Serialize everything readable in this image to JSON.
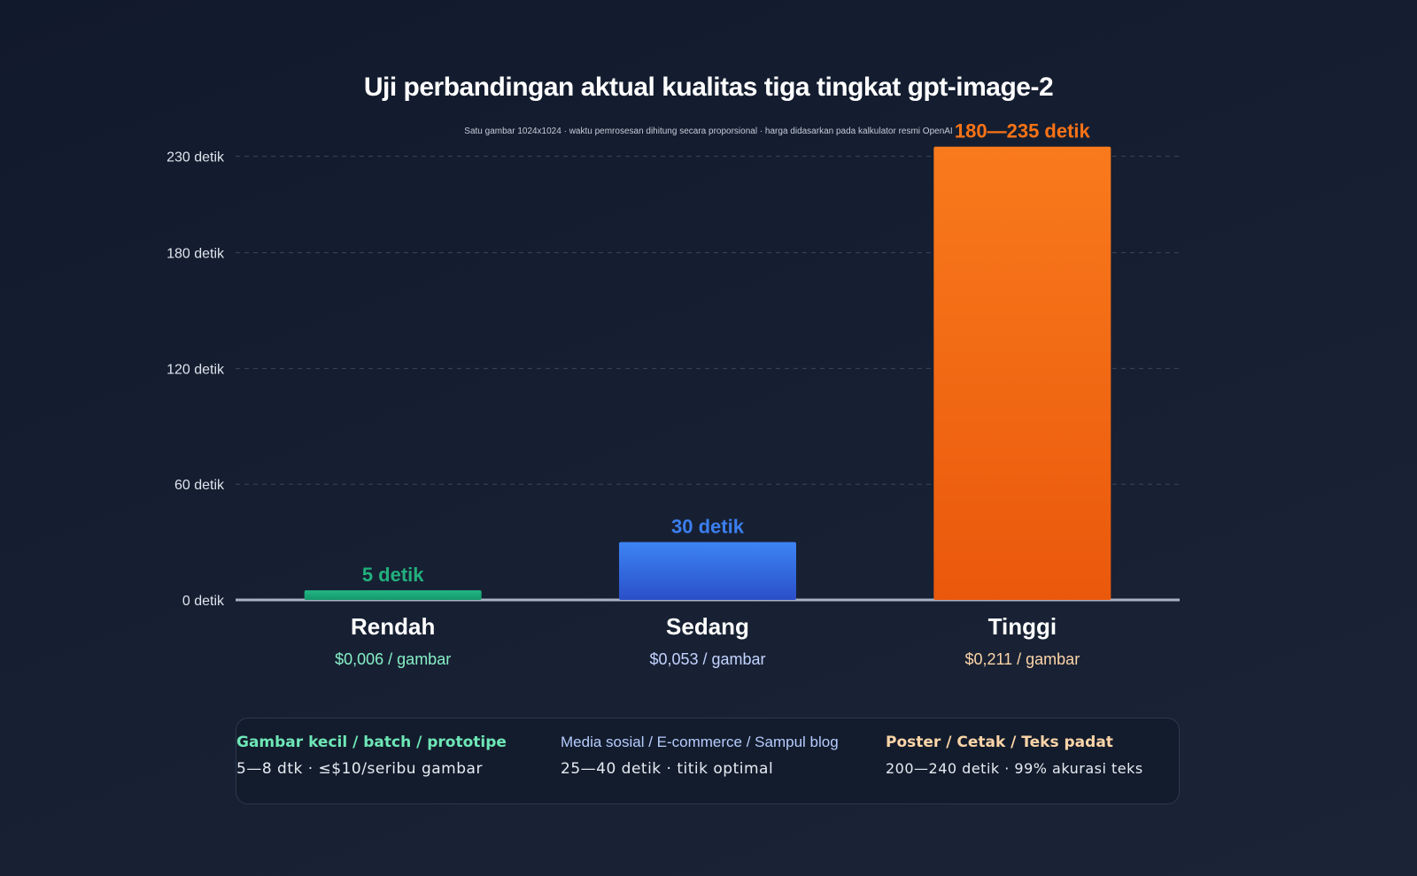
{
  "chart_data": {
    "type": "bar",
    "title": "Uji perbandingan aktual kualitas tiga tingkat gpt-image-2",
    "subtitle": "Satu gambar 1024x1024 · waktu pemrosesan dihitung secara proporsional · harga didasarkan pada kalkulator resmi OpenAI",
    "categories": [
      "Rendah",
      "Sedang",
      "Tinggi"
    ],
    "values": [
      5,
      30,
      235
    ],
    "value_labels": [
      "5 detik",
      "30 detik",
      "180—235 detik"
    ],
    "prices": [
      "$0,006 / gambar",
      "$0,053 / gambar",
      "$0,211 / gambar"
    ],
    "colors": [
      "#22b07d",
      "#3b7ff0",
      "#f97316"
    ],
    "yticks": [
      0,
      60,
      120,
      180,
      230
    ],
    "ytick_labels": [
      "0 detik",
      "60 detik",
      "120 detik",
      "180 detik",
      "230 detik"
    ],
    "ylim": [
      0,
      235
    ],
    "grid": true
  },
  "cards": [
    {
      "title": "Gambar kecil / batch / prototipe",
      "body": "5—8 dtk · ≤$10/seribu gambar",
      "color": "#6ee7b7"
    },
    {
      "title": "Media sosial / E-commerce / Sampul blog",
      "body": "25—40 detik · titik optimal",
      "color": "#b6ccff"
    },
    {
      "title": "Poster / Cetak / Teks padat",
      "body": "200—240 detik · 99% akurasi teks",
      "color": "#fdd5a8"
    }
  ]
}
